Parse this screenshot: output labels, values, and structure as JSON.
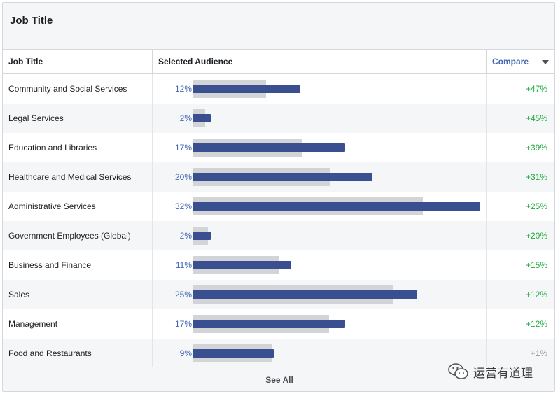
{
  "card": {
    "title": "Job Title"
  },
  "table": {
    "headers": {
      "job": "Job Title",
      "audience": "Selected Audience",
      "compare": "Compare"
    },
    "rows": [
      {
        "job": "Community and Social Services",
        "selected": 12,
        "selected_label": "12%",
        "compare": 8.2,
        "delta": "+47%",
        "delta_type": "positive"
      },
      {
        "job": "Legal Services",
        "selected": 2,
        "selected_label": "2%",
        "compare": 1.4,
        "delta": "+45%",
        "delta_type": "positive"
      },
      {
        "job": "Education and Libraries",
        "selected": 17,
        "selected_label": "17%",
        "compare": 12.2,
        "delta": "+39%",
        "delta_type": "positive"
      },
      {
        "job": "Healthcare and Medical Services",
        "selected": 20,
        "selected_label": "20%",
        "compare": 15.3,
        "delta": "+31%",
        "delta_type": "positive"
      },
      {
        "job": "Administrative Services",
        "selected": 32,
        "selected_label": "32%",
        "compare": 25.6,
        "delta": "+25%",
        "delta_type": "positive"
      },
      {
        "job": "Government Employees (Global)",
        "selected": 2,
        "selected_label": "2%",
        "compare": 1.7,
        "delta": "+20%",
        "delta_type": "positive"
      },
      {
        "job": "Business and Finance",
        "selected": 11,
        "selected_label": "11%",
        "compare": 9.6,
        "delta": "+15%",
        "delta_type": "positive"
      },
      {
        "job": "Sales",
        "selected": 25,
        "selected_label": "25%",
        "compare": 22.3,
        "delta": "+12%",
        "delta_type": "positive"
      },
      {
        "job": "Management",
        "selected": 17,
        "selected_label": "17%",
        "compare": 15.2,
        "delta": "+12%",
        "delta_type": "positive"
      },
      {
        "job": "Food and Restaurants",
        "selected": 9,
        "selected_label": "9%",
        "compare": 8.9,
        "delta": "+1%",
        "delta_type": "neutral"
      }
    ],
    "scale_max": 32
  },
  "footer": {
    "see_all": "See All"
  },
  "watermark": {
    "text": "运营有道理",
    "icon": "wechat-icon"
  },
  "colors": {
    "selected_bar": "#3a4f8f",
    "compare_bar": "#d3d4d7",
    "accent": "#4267b2",
    "positive": "#1eab3f",
    "neutral": "#8d949e"
  }
}
